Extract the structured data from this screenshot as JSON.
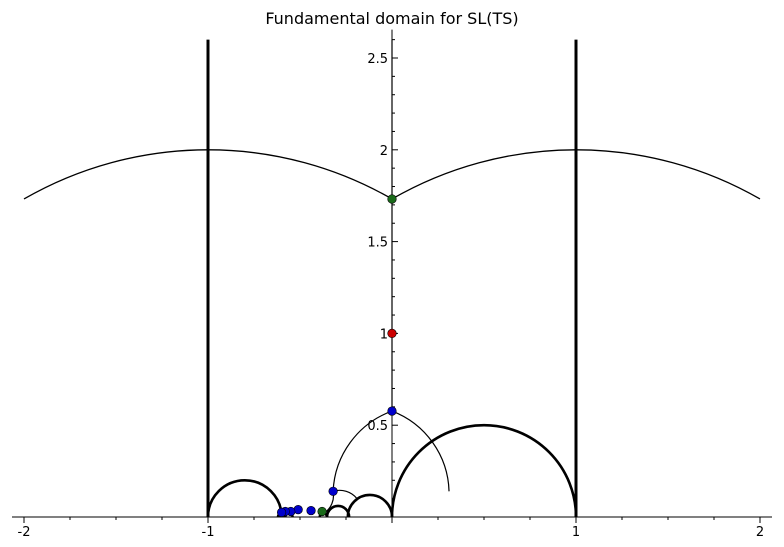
{
  "chart_data": {
    "type": "line",
    "title": "Fundamental domain for SL(TS)",
    "xlabel": "",
    "ylabel": "",
    "xlim": [
      -2,
      2
    ],
    "ylim": [
      0,
      2.6
    ],
    "grid": false,
    "x_ticks": [
      {
        "value": -2,
        "label": "-2"
      },
      {
        "value": -1,
        "label": "-1"
      },
      {
        "value": 1,
        "label": "1"
      },
      {
        "value": 2,
        "label": "2"
      }
    ],
    "y_ticks": [
      {
        "value": 0.5,
        "label": "0.5"
      },
      {
        "value": 1,
        "label": "1"
      },
      {
        "value": 1.5,
        "label": "1.5"
      },
      {
        "value": 2,
        "label": "2"
      },
      {
        "value": 2.5,
        "label": "2.5"
      }
    ],
    "boundary_lines": [
      {
        "x": -1,
        "y_from": 0,
        "y_to": 2.6
      },
      {
        "x": 1,
        "y_from": 0,
        "y_to": 2.6
      }
    ],
    "large_arcs": [
      {
        "center": -1,
        "radius": 2,
        "x_from": -2,
        "x_to": 0
      },
      {
        "center": 1,
        "radius": 2,
        "x_from": 0,
        "x_to": 2
      }
    ],
    "geodesic_arcs": [
      {
        "center": 0.5,
        "radius": 0.5,
        "thickness": "thick"
      },
      {
        "center": -0.8,
        "radius": 0.2,
        "thickness": "thick"
      },
      {
        "center": -0.12,
        "radius": 0.12,
        "thickness": "thick"
      },
      {
        "center": -0.293,
        "radius": 0.06,
        "thickness": "thick"
      },
      {
        "center": -0.373,
        "radius": 0.02,
        "thickness": "thick"
      },
      {
        "center": -0.56,
        "radius": 0.02,
        "thickness": "thick"
      },
      {
        "center": -0.6,
        "radius": 0.02,
        "thickness": "thick"
      }
    ],
    "thin_curves": [
      {
        "from": [
          -0.32,
          0.14
        ],
        "to": [
          0,
          0.577
        ]
      },
      {
        "from": [
          0,
          0.577
        ],
        "to": [
          0.31,
          0.14
        ]
      },
      {
        "from": [
          -0.32,
          0.14
        ],
        "to": [
          -0.19,
          0.1
        ]
      },
      {
        "from": [
          -0.32,
          0.14
        ],
        "to": [
          -0.37,
          0.02
        ]
      },
      {
        "from": [
          0,
          0.577
        ],
        "to": [
          0,
          2.6
        ]
      }
    ],
    "points": [
      {
        "x": 0,
        "y": 1.732,
        "color": "#1a6b1a"
      },
      {
        "x": 0,
        "y": 1,
        "color": "#cc0000"
      },
      {
        "x": 0,
        "y": 0.577,
        "color": "#0000cc"
      },
      {
        "x": -0.32,
        "y": 0.14,
        "color": "#0000cc"
      },
      {
        "x": -0.38,
        "y": 0.03,
        "color": "#1a6b1a"
      },
      {
        "x": -0.44,
        "y": 0.035,
        "color": "#0000cc"
      },
      {
        "x": -0.51,
        "y": 0.04,
        "color": "#0000cc"
      },
      {
        "x": -0.55,
        "y": 0.03,
        "color": "#0000cc"
      },
      {
        "x": -0.58,
        "y": 0.03,
        "color": "#0000cc"
      },
      {
        "x": -0.6,
        "y": 0.025,
        "color": "#0000cc"
      }
    ]
  }
}
